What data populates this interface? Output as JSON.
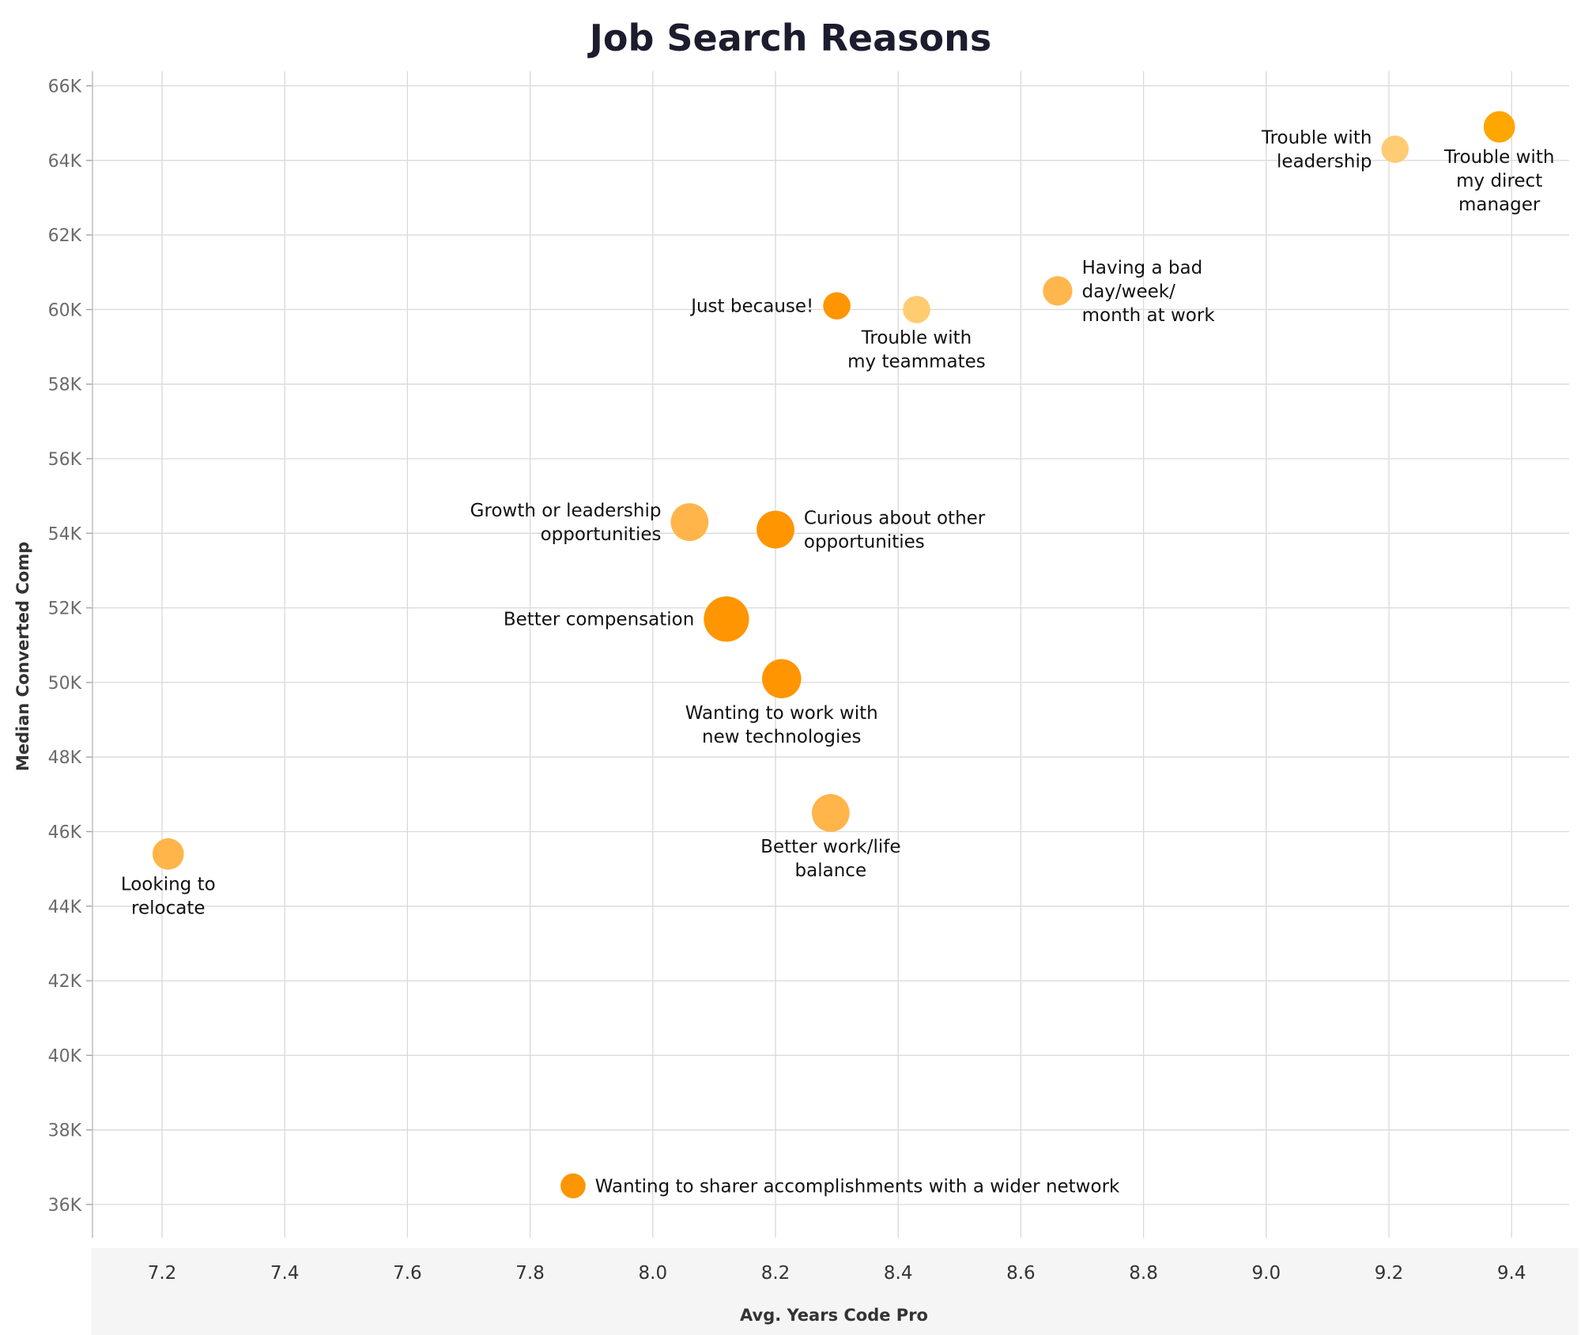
{
  "chart_data": {
    "type": "scatter",
    "title": "Job Search Reasons",
    "xlabel": "Avg. Years Code Pro",
    "ylabel": "Median Converted Comp",
    "xlim": [
      7.0,
      9.5
    ],
    "ylim": [
      35000,
      66500
    ],
    "x_ticks": [
      "7.2",
      "7.4",
      "7.6",
      "7.8",
      "8.0",
      "8.2",
      "8.4",
      "8.6",
      "8.8",
      "9.0",
      "9.2",
      "9.4"
    ],
    "y_ticks": [
      "36K",
      "38K",
      "40K",
      "42K",
      "44K",
      "46K",
      "48K",
      "50K",
      "52K",
      "54K",
      "56K",
      "58K",
      "60K",
      "62K",
      "64K",
      "66K"
    ],
    "grid": true,
    "marker_color": "#ff9800",
    "points": [
      {
        "label": "Trouble with my direct manager",
        "label_lines": [
          "Trouble with",
          "my direct",
          "manager"
        ],
        "x": 9.38,
        "y": 64900,
        "size": 3,
        "color": "#ffa600",
        "label_pos": "below"
      },
      {
        "label": "Trouble with leadership",
        "label_lines": [
          "Trouble with",
          "leadership"
        ],
        "x": 9.21,
        "y": 64300,
        "size": 2,
        "color": "#ffcb73",
        "label_pos": "left"
      },
      {
        "label": "Having a bad day/week/month at work",
        "label_lines": [
          "Having a bad",
          "day/week/",
          "month at work"
        ],
        "x": 8.66,
        "y": 60500,
        "size": 2.5,
        "color": "#ffb74d",
        "label_pos": "right"
      },
      {
        "label": "Just because!",
        "label_lines": [
          "Just because!"
        ],
        "x": 8.3,
        "y": 60100,
        "size": 2,
        "color": "#ff9500",
        "label_pos": "left"
      },
      {
        "label": "Trouble with my teammates",
        "label_lines": [
          "Trouble with",
          "my teammates"
        ],
        "x": 8.43,
        "y": 60000,
        "size": 2,
        "color": "#ffcc70",
        "label_pos": "below"
      },
      {
        "label": "Growth or leadership opportunities",
        "label_lines": [
          "Growth or leadership",
          "opportunities"
        ],
        "x": 8.06,
        "y": 54300,
        "size": 5,
        "color": "#ffb54a",
        "label_pos": "left"
      },
      {
        "label": "Curious about other opportunities",
        "label_lines": [
          "Curious about other",
          "opportunities"
        ],
        "x": 8.2,
        "y": 54100,
        "size": 5,
        "color": "#ff9500",
        "label_pos": "right"
      },
      {
        "label": "Better compensation",
        "label_lines": [
          "Better compensation"
        ],
        "x": 8.12,
        "y": 51700,
        "size": 8,
        "color": "#ff9500",
        "label_pos": "left"
      },
      {
        "label": "Wanting to work with new technologies",
        "label_lines": [
          "Wanting to work with",
          "new technologies"
        ],
        "x": 8.21,
        "y": 50100,
        "size": 5.5,
        "color": "#ff9500",
        "label_pos": "below"
      },
      {
        "label": "Better work/life balance",
        "label_lines": [
          "Better work/life",
          "balance"
        ],
        "x": 8.29,
        "y": 46500,
        "size": 5,
        "color": "#ffb54a",
        "label_pos": "below"
      },
      {
        "label": "Looking to relocate",
        "label_lines": [
          "Looking to",
          "relocate"
        ],
        "x": 7.21,
        "y": 45400,
        "size": 3,
        "color": "#ffb54a",
        "label_pos": "below"
      },
      {
        "label": "Wanting to sharer accomplishments with a wider network",
        "label_lines": [
          "Wanting to sharer accomplishments with a wider network"
        ],
        "x": 7.87,
        "y": 36500,
        "size": 1.5,
        "color": "#ff9500",
        "label_pos": "right"
      }
    ]
  }
}
